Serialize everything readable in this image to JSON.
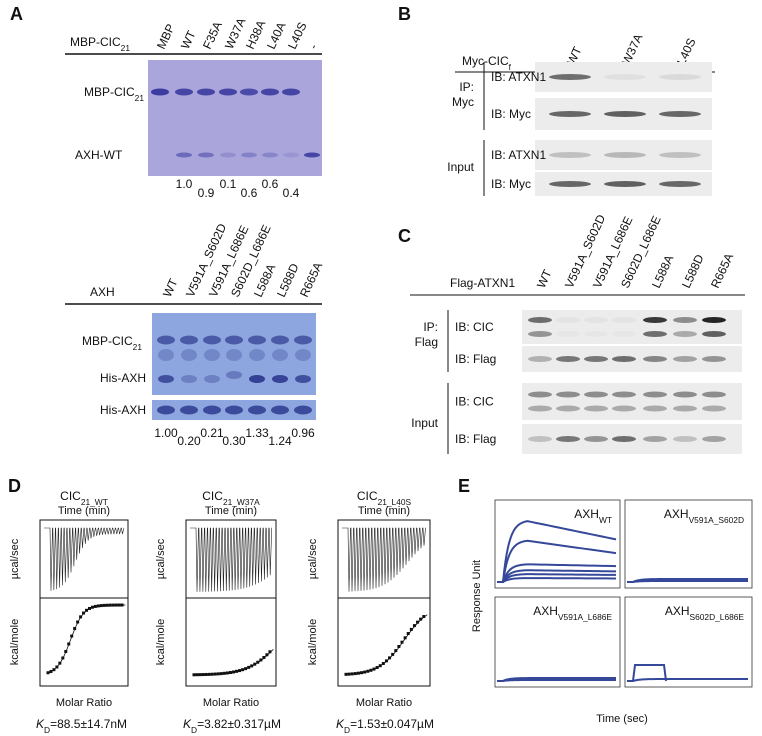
{
  "panels": {
    "a": {
      "label": "A",
      "top": {
        "header": {
          "main": "MBP-CIC",
          "sub": "21"
        },
        "lanes": [
          "MBP",
          "WT",
          "F35A",
          "W37A",
          "H38A",
          "L40A",
          "L40S",
          "-"
        ],
        "rows": [
          {
            "main": "MBP-CIC",
            "sub": "21"
          },
          {
            "main": "AXH-WT"
          }
        ],
        "quant": [
          "1.0",
          "0.9",
          "0.1",
          "0.6",
          "0.6",
          "0.4"
        ]
      },
      "bottom": {
        "header": "AXH",
        "lanes": [
          "WT",
          "V591A_S602D",
          "V591A_L686E",
          "S602D_L686E",
          "L588A",
          "L588D",
          "R665A"
        ],
        "rows": [
          {
            "main": "MBP-CIC",
            "sub": "21"
          },
          {
            "main": "His-AXH"
          },
          {
            "main": "His-AXH"
          }
        ],
        "quant": [
          "1.00",
          "0.20",
          "0.21",
          "0.30",
          "1.33",
          "1.24",
          "0.96"
        ]
      }
    },
    "b": {
      "label": "B",
      "header": {
        "main": "Myc-CIC",
        "sub": "f"
      },
      "lanes": [
        "WT",
        "W37A",
        "L40S"
      ],
      "groups": [
        {
          "lines": [
            "IP:",
            "Myc"
          ],
          "blots": [
            "IB: ATXN1",
            "IB: Myc"
          ]
        },
        {
          "lines": [
            "Input"
          ],
          "blots": [
            "IB: ATXN1",
            "IB: Myc"
          ]
        }
      ]
    },
    "c": {
      "label": "C",
      "header": "Flag-ATXN1",
      "lanes": [
        "WT",
        "V591A_S602D",
        "V591A_L686E",
        "S602D_L686E",
        "L588A",
        "L588D",
        "R665A"
      ],
      "groups": [
        {
          "lines": [
            "IP:",
            "Flag"
          ],
          "blots": [
            "IB: CIC",
            "IB: Flag"
          ]
        },
        {
          "lines": [
            "Input"
          ],
          "blots": [
            "IB: CIC",
            "IB: Flag"
          ]
        }
      ]
    },
    "d": {
      "label": "D",
      "plots": [
        {
          "title": {
            "main": "CIC",
            "sub": "21_WT"
          },
          "x_top": "Time (min)",
          "y_top": "µcal/sec",
          "y_bottom": "kcal/mole",
          "x_bottom": "Molar Ratio",
          "kd": {
            "k": "K",
            "sub": "D",
            "rest": "=88.5±14.7nM"
          }
        },
        {
          "title": {
            "main": "CIC",
            "sub": "21_W37A"
          },
          "x_top": "Time (min)",
          "y_top": "µcal/sec",
          "y_bottom": "kcal/mole",
          "x_bottom": "Molar Ratio",
          "kd": {
            "k": "K",
            "sub": "D",
            "rest": "=3.82±0.317µM"
          }
        },
        {
          "title": {
            "main": "CIC",
            "sub": "21_L40S"
          },
          "x_top": "Time (min)",
          "y_top": "µcal/sec",
          "y_bottom": "kcal/mole",
          "x_bottom": "Molar Ratio",
          "kd": {
            "k": "K",
            "sub": "D",
            "rest": "=1.53±0.047µM"
          }
        }
      ]
    },
    "e": {
      "label": "E",
      "plots": [
        {
          "main": "AXH",
          "sub": "WT"
        },
        {
          "main": "AXH",
          "sub": "V591A_S602D"
        },
        {
          "main": "AXH",
          "sub": "V591A_L686E"
        },
        {
          "main": "AXH",
          "sub": "S602D_L686E"
        }
      ],
      "y_label": "Response Unit",
      "x_label": "Time (sec)"
    }
  }
}
